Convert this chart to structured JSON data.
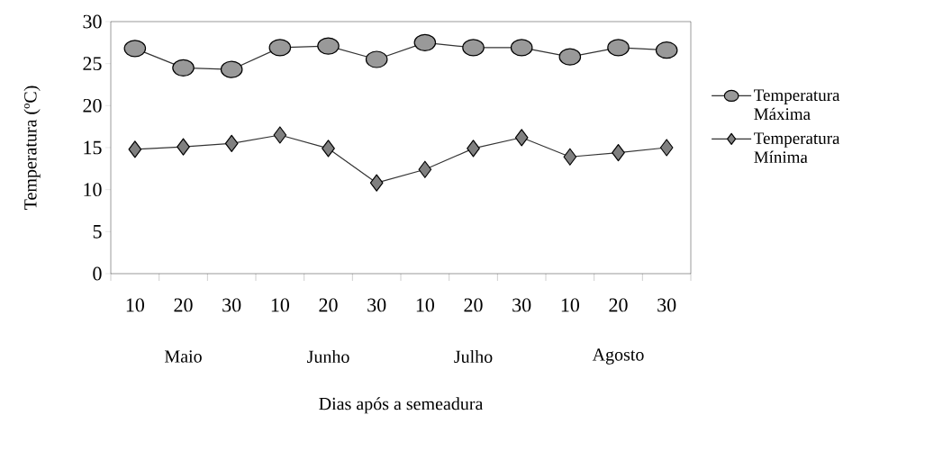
{
  "chart_data": {
    "type": "line",
    "xlabel": "Dias após a semeadura",
    "ylabel": "Temperatura (ºC)",
    "categories": [
      "10",
      "20",
      "30",
      "10",
      "20",
      "30",
      "10",
      "20",
      "30",
      "10",
      "20",
      "30"
    ],
    "series": [
      {
        "name": "Temperatura Máxima",
        "color": "#999999",
        "marker": "circle",
        "values": [
          26.8,
          24.5,
          24.3,
          26.9,
          27.1,
          25.5,
          27.5,
          26.9,
          26.9,
          25.8,
          26.9,
          26.6
        ]
      },
      {
        "name": "Temperatura Mínima",
        "color": "#808080",
        "marker": "diamond",
        "values": [
          14.8,
          15.1,
          15.5,
          16.5,
          14.9,
          10.8,
          12.4,
          14.9,
          16.2,
          13.9,
          14.4,
          15.0
        ]
      }
    ],
    "ylim": [
      0,
      30
    ],
    "yticks": [
      0,
      5,
      10,
      15,
      20,
      25,
      30
    ],
    "annotations": [
      "Maio",
      "Junho",
      "Julho",
      "Agosto"
    ],
    "legend": "right",
    "grid": false,
    "line_style": "solid"
  }
}
